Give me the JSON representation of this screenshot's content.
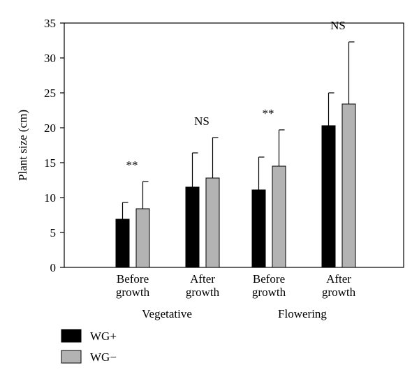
{
  "chart_data": {
    "type": "bar",
    "ylabel": "Plant size (cm)",
    "xlabel": "",
    "ylim": [
      0,
      35
    ],
    "yticks": [
      0,
      5,
      10,
      15,
      20,
      25,
      30,
      35
    ],
    "categories": [
      {
        "line1": "Before",
        "line2": "growth",
        "group": "Vegetative"
      },
      {
        "line1": "After",
        "line2": "growth",
        "group": "Vegetative"
      },
      {
        "line1": "Before",
        "line2": "growth",
        "group": "Flowering"
      },
      {
        "line1": "After",
        "line2": "growth",
        "group": "Flowering"
      }
    ],
    "groups": [
      "Vegetative",
      "Flowering"
    ],
    "series": [
      {
        "name": "WG+",
        "color": "#000000",
        "values": [
          6.9,
          11.5,
          11.1,
          20.3
        ],
        "errors": [
          2.4,
          4.9,
          4.7,
          4.7
        ]
      },
      {
        "name": "WG−",
        "color": "#b3b3b3",
        "values": [
          8.4,
          12.8,
          14.5,
          23.4
        ],
        "errors": [
          3.9,
          5.8,
          5.2,
          8.9
        ]
      }
    ],
    "significance": [
      "**",
      "NS",
      "**",
      "NS"
    ],
    "grid": false,
    "legend_position": "bottom-left"
  }
}
